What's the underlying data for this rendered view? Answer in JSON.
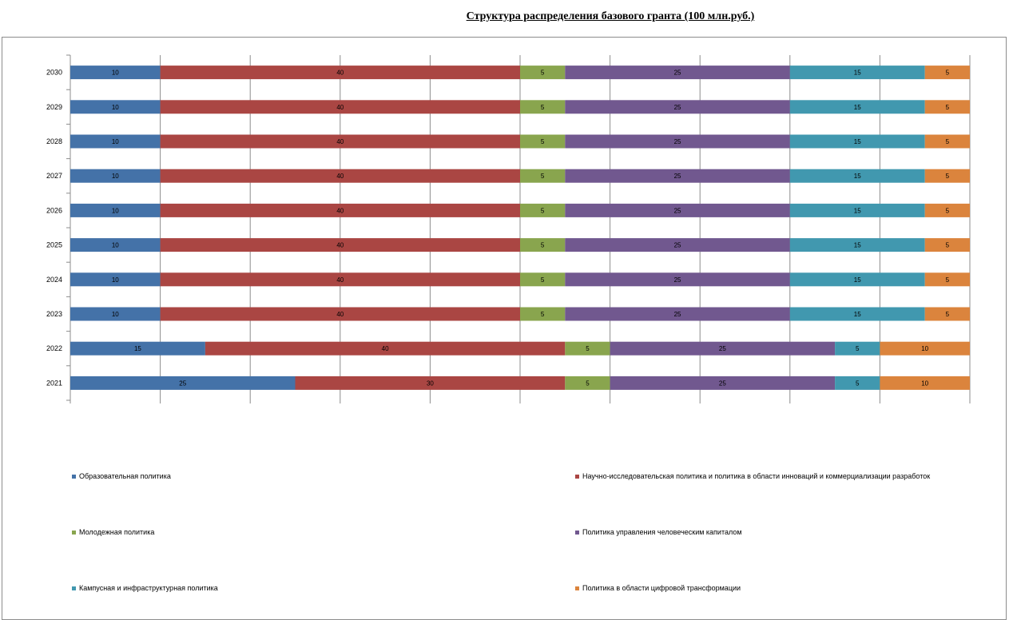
{
  "title": "Структура распределения базового гранта (100 млн.руб.)",
  "chart_data": {
    "type": "bar",
    "orientation": "horizontal",
    "stacked": true,
    "categories": [
      "2030",
      "2029",
      "2028",
      "2027",
      "2026",
      "2025",
      "2024",
      "2023",
      "2022",
      "2021"
    ],
    "xlim": [
      0,
      100
    ],
    "grid": true,
    "legend_position": "bottom",
    "series": [
      {
        "name": "Образовательная политика",
        "color": "#4472a8",
        "values": [
          10,
          10,
          10,
          10,
          10,
          10,
          10,
          10,
          15,
          25
        ]
      },
      {
        "name": "Научно-исследовательская политика и политика в области инноваций и коммерциализации разработок",
        "color": "#aa4643",
        "values": [
          40,
          40,
          40,
          40,
          40,
          40,
          40,
          40,
          40,
          30
        ]
      },
      {
        "name": "Молодежная политика",
        "color": "#89a54e",
        "values": [
          5,
          5,
          5,
          5,
          5,
          5,
          5,
          5,
          5,
          5
        ]
      },
      {
        "name": "Политика управления человеческим капиталом",
        "color": "#71588f",
        "values": [
          25,
          25,
          25,
          25,
          25,
          25,
          25,
          25,
          25,
          25
        ]
      },
      {
        "name": "Кампусная и инфраструктурная политика",
        "color": "#4198af",
        "values": [
          15,
          15,
          15,
          15,
          15,
          15,
          15,
          15,
          5,
          5
        ]
      },
      {
        "name": "Политика в области цифровой трансформации",
        "color": "#db843d",
        "values": [
          5,
          5,
          5,
          5,
          5,
          5,
          5,
          5,
          10,
          10
        ]
      }
    ]
  }
}
